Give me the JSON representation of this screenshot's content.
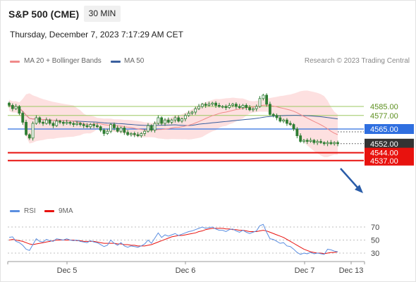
{
  "header": {
    "instrument": "S&P 500 (CME)",
    "timeframe": "30 MIN",
    "datetime": "Thursday, December 7, 2023 7:17:29 AM CET",
    "source": "Research © 2023 Trading Central"
  },
  "legend": {
    "ma20_label": "MA 20 + Bollinger Bands",
    "ma50_label": "MA 50",
    "rsi_label": "RSI",
    "ma9_label": "9MA"
  },
  "colors": {
    "bollinger_fill": "#fde0e0",
    "ma20": "#f08a8a",
    "ma50": "#3a5f9e",
    "candle": "#2e7d32",
    "resistance": "#9bc860",
    "pivot": "#2f6fe0",
    "support": "#e8120e",
    "last_price": "#333333",
    "rsi": "#5b8ee0",
    "rsi_ma9": "#e8120e"
  },
  "chart_data": [
    {
      "type": "candlestick",
      "price_range": [
        4530,
        4605
      ],
      "x_tick_labels": [
        "Dec 5",
        "Dec 6",
        "Dec 7",
        "Dec 13"
      ],
      "levels": [
        {
          "value": 4585.0,
          "label": "4585.00",
          "kind": "resistance"
        },
        {
          "value": 4577.0,
          "label": "4577.00",
          "kind": "resistance"
        },
        {
          "value": 4565.0,
          "label": "4565.00",
          "kind": "pivot"
        },
        {
          "value": 4552.0,
          "label": "4552.00",
          "kind": "last"
        },
        {
          "value": 4544.0,
          "label": "4544.00",
          "kind": "support"
        },
        {
          "value": 4537.0,
          "label": "4537.00",
          "kind": "support"
        }
      ],
      "close": [
        4586,
        4583,
        4585,
        4579,
        4571,
        4560,
        4557,
        4570,
        4575,
        4571,
        4570,
        4573,
        4570,
        4568,
        4572,
        4571,
        4570,
        4571,
        4570,
        4569,
        4570,
        4569,
        4568,
        4567,
        4569,
        4568,
        4567,
        4564,
        4561,
        4563,
        4569,
        4566,
        4563,
        4566,
        4562,
        4560,
        4561,
        4560,
        4559,
        4561,
        4563,
        4568,
        4564,
        4570,
        4575,
        4570,
        4573,
        4571,
        4573,
        4575,
        4572,
        4574,
        4577,
        4579,
        4580,
        4583,
        4585,
        4587,
        4586,
        4587,
        4588,
        4586,
        4585,
        4585,
        4584,
        4586,
        4587,
        4585,
        4584,
        4586,
        4584,
        4582,
        4583,
        4585,
        4592,
        4595,
        4587,
        4578,
        4577,
        4575,
        4572,
        4573,
        4570,
        4569,
        4565,
        4559,
        4554,
        4555,
        4554,
        4555,
        4553,
        4554,
        4553,
        4552,
        4553,
        4552,
        4553,
        4552
      ],
      "rsi_ticks": [
        70,
        50,
        30
      ],
      "rsi": [
        54,
        55,
        48,
        46,
        42,
        36,
        34,
        43,
        52,
        48,
        47,
        51,
        49,
        48,
        52,
        51,
        50,
        52,
        50,
        49,
        50,
        48,
        47,
        46,
        49,
        47,
        46,
        43,
        40,
        42,
        50,
        45,
        42,
        46,
        41,
        39,
        41,
        40,
        39,
        41,
        44,
        50,
        45,
        53,
        61,
        54,
        58,
        56,
        58,
        60,
        57,
        59,
        61,
        63,
        64,
        66,
        68,
        70,
        68,
        69,
        70,
        67,
        65,
        65,
        63,
        66,
        67,
        64,
        62,
        65,
        62,
        60,
        62,
        64,
        72,
        74,
        62,
        52,
        51,
        48,
        45,
        46,
        41,
        40,
        36,
        31,
        28,
        30,
        29,
        31,
        29,
        30,
        29,
        28,
        36,
        35,
        33,
        32
      ],
      "rsi_ma9": [
        50,
        51,
        50,
        49,
        48,
        46,
        44,
        43,
        44,
        45,
        46,
        47,
        48,
        49,
        50,
        50,
        50,
        50,
        50,
        50,
        49,
        49,
        48,
        48,
        48,
        48,
        47,
        46,
        45,
        45,
        45,
        45,
        44,
        44,
        43,
        43,
        42,
        42,
        41,
        41,
        41,
        42,
        43,
        45,
        47,
        49,
        51,
        53,
        55,
        56,
        57,
        57,
        58,
        59,
        60,
        61,
        63,
        64,
        66,
        67,
        68,
        68,
        68,
        68,
        67,
        67,
        66,
        66,
        65,
        65,
        64,
        63,
        63,
        63,
        64,
        65,
        64,
        62,
        60,
        58,
        56,
        54,
        51,
        48,
        45,
        42,
        39,
        36,
        34,
        32,
        31,
        30,
        30,
        29,
        30,
        31,
        31,
        32
      ]
    }
  ]
}
